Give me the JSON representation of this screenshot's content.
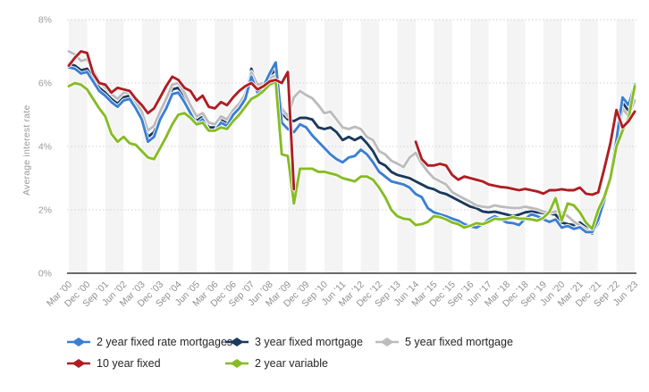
{
  "style": {
    "stripe": "#f4f4f4",
    "grid": "#cfcfcf",
    "axis_line": "#3c3c3c",
    "tick_text": "#9a9a9a",
    "x_label_text": "#8f8f8f",
    "legend_text": "#262626",
    "background": "#ffffff"
  },
  "chart_data": {
    "type": "line",
    "title": "",
    "ylabel": "Average interest rate",
    "xlabel": "",
    "ylim": [
      0,
      8
    ],
    "grid": "dotted horizontal lines, alternating vertical background stripes",
    "legend_position": "bottom",
    "y_ticks": [
      {
        "value": 8,
        "label": "8%"
      },
      {
        "value": 6,
        "label": "6%"
      },
      {
        "value": 4,
        "label": "4%"
      },
      {
        "value": 2,
        "label": "2%"
      },
      {
        "value": 0,
        "label": "0%"
      }
    ],
    "points_per_label": 3,
    "x_labels": [
      "Mar ’00",
      "Dec ’00",
      "Sep ’01",
      "Jun ’02",
      "Mar ’03",
      "Dec ’03",
      "Sep ’04",
      "Jun ’05",
      "Mar ’06",
      "Dec ’06",
      "Sep ’07",
      "Jun ’08",
      "Mar ’09",
      "Dec ’09",
      "Sep ’10",
      "Jun ’11",
      "Mar ’12",
      "Dec ’12",
      "Sep ’13",
      "Jun ’14",
      "Mar ’15",
      "Dec ’15",
      "Sep ’16",
      "Jun ’17",
      "Mar ’18",
      "Dec ’18",
      "Sep ’19",
      "Jun ’20",
      "Mar ’21",
      "Dec ’21",
      "Sep ’22",
      "Jun ’23"
    ],
    "x_unit": "quarterly from Mar 2000 to Jun 2023",
    "series": [
      {
        "name": "2 year fixed rate mortgages",
        "color": "#3b7fd4",
        "values": [
          6.5,
          6.45,
          6.3,
          6.35,
          6.05,
          5.75,
          5.6,
          5.4,
          5.25,
          5.45,
          5.5,
          5.2,
          4.85,
          4.15,
          4.3,
          4.85,
          5.2,
          5.65,
          5.7,
          5.4,
          5.05,
          4.7,
          4.85,
          4.5,
          4.5,
          4.75,
          4.65,
          5.0,
          5.2,
          5.5,
          6.2,
          5.7,
          5.9,
          6.3,
          6.65,
          4.75,
          4.55,
          4.45,
          4.7,
          4.6,
          4.35,
          4.15,
          3.95,
          3.75,
          3.6,
          3.5,
          3.65,
          3.7,
          3.9,
          3.75,
          3.5,
          3.2,
          3.05,
          2.9,
          2.85,
          2.8,
          2.7,
          2.5,
          2.4,
          2.05,
          1.92,
          1.86,
          1.8,
          1.72,
          1.66,
          1.55,
          1.48,
          1.44,
          1.55,
          1.7,
          1.8,
          1.7,
          1.6,
          1.58,
          1.52,
          1.72,
          1.86,
          1.8,
          1.7,
          1.62,
          1.7,
          1.44,
          1.49,
          1.4,
          1.45,
          1.3,
          1.3,
          1.7,
          2.3,
          3.1,
          4.2,
          5.55,
          5.3,
          5.95
        ]
      },
      {
        "name": "3 year fixed mortgage",
        "color": "#1a3a5c",
        "values": [
          6.6,
          6.55,
          6.4,
          6.45,
          6.15,
          5.85,
          5.7,
          5.5,
          5.35,
          5.55,
          5.6,
          5.3,
          4.95,
          4.3,
          4.45,
          4.95,
          5.35,
          5.8,
          5.85,
          5.55,
          5.15,
          4.8,
          4.95,
          4.6,
          4.6,
          4.85,
          4.75,
          5.1,
          5.3,
          5.6,
          6.45,
          5.9,
          6.0,
          6.25,
          6.4,
          5.05,
          4.85,
          4.8,
          4.9,
          4.9,
          4.85,
          4.6,
          4.55,
          4.6,
          4.45,
          4.2,
          4.3,
          4.2,
          4.3,
          4.1,
          3.85,
          3.5,
          3.4,
          3.2,
          3.1,
          3.05,
          3.0,
          2.9,
          2.8,
          2.7,
          2.65,
          2.55,
          2.5,
          2.4,
          2.3,
          2.2,
          2.1,
          2.05,
          1.95,
          1.92,
          1.94,
          1.9,
          1.85,
          1.8,
          1.85,
          1.92,
          1.95,
          1.92,
          1.9,
          1.88,
          1.85,
          1.6,
          1.55,
          1.52,
          1.6,
          1.45,
          1.25,
          1.55,
          2.35,
          3.15,
          4.3,
          5.4,
          5.1,
          5.85
        ]
      },
      {
        "name": "5 year fixed mortgage",
        "color": "#bcbcbc",
        "values": [
          7.0,
          6.9,
          6.7,
          6.75,
          6.4,
          6.05,
          5.85,
          5.65,
          5.5,
          5.7,
          5.7,
          5.4,
          5.1,
          4.5,
          4.65,
          5.1,
          5.5,
          5.95,
          6.0,
          5.7,
          5.3,
          4.95,
          5.05,
          4.75,
          4.7,
          4.95,
          4.85,
          5.15,
          5.35,
          5.65,
          6.35,
          5.95,
          6.0,
          6.15,
          6.25,
          5.2,
          4.95,
          5.55,
          5.75,
          5.62,
          5.52,
          5.3,
          5.05,
          5.1,
          4.85,
          4.6,
          4.55,
          4.62,
          4.55,
          4.3,
          4.2,
          3.85,
          3.75,
          3.55,
          3.46,
          3.35,
          3.65,
          3.8,
          3.46,
          3.2,
          3.0,
          2.9,
          2.8,
          2.56,
          2.45,
          2.35,
          2.25,
          2.14,
          2.1,
          2.08,
          2.14,
          2.1,
          2.08,
          2.06,
          2.06,
          2.1,
          2.06,
          2.02,
          1.95,
          1.9,
          1.95,
          1.92,
          1.8,
          1.63,
          1.5,
          1.38,
          1.3,
          1.55,
          2.4,
          3.05,
          4.0,
          5.2,
          4.95,
          5.45
        ]
      },
      {
        "name": "10 year fixed",
        "color": "#ae1e24",
        "values": [
          6.55,
          6.8,
          7.0,
          6.95,
          6.3,
          6.0,
          5.95,
          5.7,
          5.85,
          5.8,
          5.75,
          5.5,
          5.3,
          5.05,
          5.2,
          5.55,
          5.9,
          6.2,
          6.1,
          5.85,
          5.75,
          5.45,
          5.6,
          5.25,
          5.2,
          5.4,
          5.3,
          5.55,
          5.75,
          5.9,
          6.0,
          5.8,
          5.9,
          6.05,
          6.1,
          6.0,
          6.35,
          2.65,
          null,
          null,
          null,
          null,
          null,
          null,
          null,
          null,
          null,
          null,
          null,
          null,
          null,
          null,
          null,
          null,
          null,
          null,
          null,
          4.15,
          3.6,
          3.4,
          3.4,
          3.45,
          3.4,
          3.1,
          2.95,
          3.05,
          3.0,
          2.95,
          2.9,
          2.8,
          2.76,
          2.72,
          2.7,
          2.66,
          2.62,
          2.66,
          2.62,
          2.58,
          2.51,
          2.62,
          2.62,
          2.65,
          2.62,
          2.62,
          2.7,
          2.51,
          2.48,
          2.55,
          3.3,
          4.1,
          5.15,
          4.6,
          4.8,
          5.1
        ]
      },
      {
        "name": "2 year variable",
        "color": "#86bc25",
        "values": [
          5.9,
          6.0,
          5.95,
          5.8,
          5.5,
          5.2,
          4.95,
          4.4,
          4.15,
          4.3,
          4.1,
          4.05,
          3.85,
          3.65,
          3.6,
          3.95,
          4.3,
          4.7,
          5.0,
          5.05,
          4.9,
          4.7,
          4.75,
          4.5,
          4.5,
          4.6,
          4.55,
          4.8,
          5.0,
          5.25,
          5.5,
          5.6,
          5.75,
          5.95,
          6.05,
          3.75,
          3.7,
          2.2,
          3.3,
          3.3,
          3.3,
          3.2,
          3.2,
          3.15,
          3.1,
          3.0,
          2.95,
          2.9,
          3.05,
          3.05,
          2.95,
          2.7,
          2.4,
          2.0,
          1.8,
          1.72,
          1.7,
          1.52,
          1.55,
          1.62,
          1.8,
          1.77,
          1.7,
          1.6,
          1.55,
          1.44,
          1.5,
          1.58,
          1.55,
          1.62,
          1.72,
          1.7,
          1.72,
          1.77,
          1.72,
          1.72,
          1.7,
          1.66,
          1.75,
          1.94,
          2.37,
          1.66,
          2.2,
          2.14,
          1.92,
          1.6,
          1.4,
          2.0,
          2.4,
          3.0,
          4.0,
          4.5,
          4.9,
          5.9
        ]
      }
    ]
  }
}
